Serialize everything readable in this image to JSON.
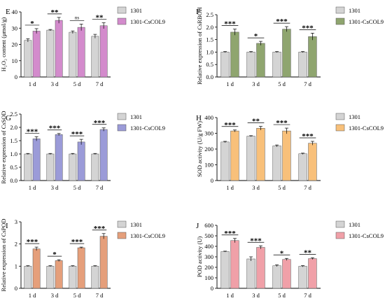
{
  "chart_data": [
    {
      "type": "bar",
      "panel_label": "E",
      "ylabel": "H₂O₂ content (μmol/g)",
      "ylim": [
        0,
        40
      ],
      "yticks": [
        0,
        10,
        20,
        30,
        40
      ],
      "categories": [
        "1 d",
        "3 d",
        "5 d",
        "7 d"
      ],
      "series": [
        {
          "name": "1301",
          "values": [
            22.5,
            28.8,
            27.5,
            25.0
          ],
          "errors": [
            1.0,
            0.4,
            0.8,
            1.2
          ],
          "color": "#d4d4d4"
        },
        {
          "name": "1301-CsCOL9",
          "values": [
            28.2,
            34.8,
            30.5,
            31.5
          ],
          "errors": [
            1.5,
            1.8,
            2.0,
            1.8
          ],
          "color": "#d38bcc"
        }
      ],
      "significance": [
        "*",
        "**",
        "ns",
        "**"
      ],
      "legend_position": "top-right"
    },
    {
      "type": "bar",
      "panel_label": "F",
      "ylabel": "Relative expression of CsRBOH",
      "ylim": [
        0,
        2.5
      ],
      "yticks": [
        0.0,
        0.5,
        1.0,
        1.5,
        2.0,
        2.5
      ],
      "categories": [
        "1 d",
        "3 d",
        "5 d",
        "7 d"
      ],
      "series": [
        {
          "name": "1301",
          "values": [
            1.0,
            1.0,
            1.0,
            1.0
          ],
          "errors": [
            0.02,
            0.02,
            0.02,
            0.02
          ],
          "color": "#d4d4d4"
        },
        {
          "name": "1301-CsCOL9",
          "values": [
            1.8,
            1.35,
            1.92,
            1.62
          ],
          "errors": [
            0.12,
            0.08,
            0.1,
            0.14
          ],
          "color": "#8fa56f"
        }
      ],
      "significance": [
        "***",
        "*",
        "***",
        "***"
      ],
      "legend_position": "top-right"
    },
    {
      "type": "bar",
      "panel_label": "G",
      "ylabel": "Relative expression of CsSOD",
      "ylim": [
        0,
        2.5
      ],
      "yticks": [
        0.0,
        0.5,
        1.0,
        1.5,
        2.0,
        2.5
      ],
      "categories": [
        "1 d",
        "3 d",
        "5 d",
        "7 d"
      ],
      "series": [
        {
          "name": "1301",
          "values": [
            1.0,
            1.0,
            1.0,
            1.0
          ],
          "errors": [
            0.02,
            0.02,
            0.02,
            0.02
          ],
          "color": "#d4d4d4"
        },
        {
          "name": "1301-CsCOL9",
          "values": [
            1.57,
            1.73,
            1.45,
            1.92
          ],
          "errors": [
            0.08,
            0.04,
            0.1,
            0.06
          ],
          "color": "#9b9bd8"
        }
      ],
      "significance": [
        "***",
        "***",
        "***",
        "***"
      ],
      "legend_position": "top-right"
    },
    {
      "type": "bar",
      "panel_label": "H",
      "ylabel": "SOD activity (U/g FW)",
      "ylim": [
        0,
        400
      ],
      "yticks": [
        0,
        100,
        200,
        300,
        400
      ],
      "categories": [
        "1 d",
        "3 d",
        "5 d",
        "7 d"
      ],
      "series": [
        {
          "name": "1301",
          "values": [
            245,
            282,
            220,
            170
          ],
          "errors": [
            4,
            3,
            6,
            4
          ],
          "color": "#d4d4d4"
        },
        {
          "name": "1301-CsCOL9",
          "values": [
            315,
            332,
            315,
            237
          ],
          "errors": [
            6,
            12,
            18,
            12
          ],
          "color": "#f8c07a"
        }
      ],
      "significance": [
        "***",
        "**",
        "***",
        "***"
      ],
      "legend_position": "top-right"
    },
    {
      "type": "bar",
      "panel_label": "I",
      "ylabel": "Relative expression of CsPOD",
      "ylim": [
        0,
        3
      ],
      "yticks": [
        0,
        1,
        2,
        3
      ],
      "categories": [
        "1 d",
        "3 d",
        "5 d",
        "7 d"
      ],
      "series": [
        {
          "name": "1301",
          "values": [
            1.0,
            1.0,
            1.0,
            1.0
          ],
          "errors": [
            0.02,
            0.02,
            0.02,
            0.02
          ],
          "color": "#d4d4d4"
        },
        {
          "name": "1301-CsCOL9",
          "values": [
            1.78,
            1.25,
            1.83,
            2.35
          ],
          "errors": [
            0.08,
            0.04,
            0.03,
            0.12
          ],
          "color": "#e59f7b"
        }
      ],
      "significance": [
        "***",
        "*",
        "***",
        "***"
      ],
      "legend_position": "top-right"
    },
    {
      "type": "bar",
      "panel_label": "J",
      "ylabel": "POD activity (U)",
      "ylim": [
        0,
        600
      ],
      "yticks": [
        0,
        100,
        200,
        300,
        400,
        500,
        600
      ],
      "categories": [
        "1 d",
        "3 d",
        "5 d",
        "7 d"
      ],
      "series": [
        {
          "name": "1301",
          "values": [
            350,
            280,
            215,
            210
          ],
          "errors": [
            4,
            20,
            8,
            6
          ],
          "color": "#d4d4d4"
        },
        {
          "name": "1301-CsCOL9",
          "values": [
            455,
            390,
            275,
            283
          ],
          "errors": [
            20,
            15,
            10,
            8
          ],
          "color": "#f0a0a8"
        }
      ],
      "significance": [
        "***",
        "***",
        "*",
        "**"
      ],
      "legend_position": "top-right"
    }
  ]
}
